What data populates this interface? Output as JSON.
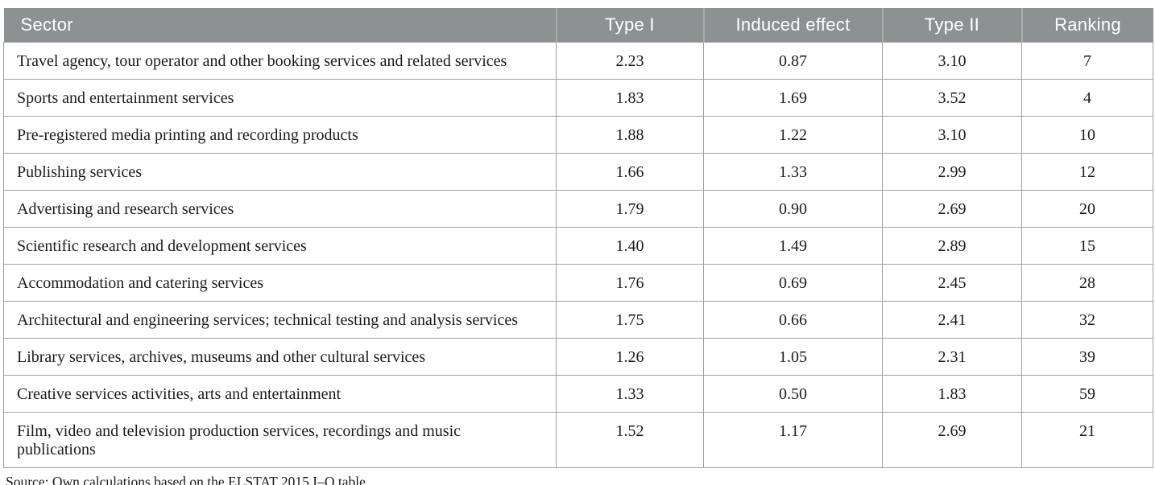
{
  "table": {
    "columns": [
      "Sector",
      "Type I",
      "Induced effect",
      "Type II",
      "Ranking"
    ],
    "rows": [
      {
        "sector": "Travel agency, tour operator and other booking services and related services",
        "type_i": "2.23",
        "induced_effect": "0.87",
        "type_ii": "3.10",
        "ranking": "7"
      },
      {
        "sector": "Sports and entertainment services",
        "type_i": "1.83",
        "induced_effect": "1.69",
        "type_ii": "3.52",
        "ranking": "4"
      },
      {
        "sector": "Pre-registered media printing and recording products",
        "type_i": "1.88",
        "induced_effect": "1.22",
        "type_ii": "3.10",
        "ranking": "10"
      },
      {
        "sector": "Publishing services",
        "type_i": "1.66",
        "induced_effect": "1.33",
        "type_ii": "2.99",
        "ranking": "12"
      },
      {
        "sector": "Advertising and research services",
        "type_i": "1.79",
        "induced_effect": "0.90",
        "type_ii": "2.69",
        "ranking": "20"
      },
      {
        "sector": "Scientific research and development services",
        "type_i": "1.40",
        "induced_effect": "1.49",
        "type_ii": "2.89",
        "ranking": "15"
      },
      {
        "sector": "Accommodation and catering services",
        "type_i": "1.76",
        "induced_effect": "0.69",
        "type_ii": "2.45",
        "ranking": "28"
      },
      {
        "sector": "Architectural and engineering services; technical testing and analysis services",
        "type_i": "1.75",
        "induced_effect": "0.66",
        "type_ii": "2.41",
        "ranking": "32"
      },
      {
        "sector": "Library services, archives, museums and other cultural services",
        "type_i": "1.26",
        "induced_effect": "1.05",
        "type_ii": "2.31",
        "ranking": "39"
      },
      {
        "sector": "Creative services activities, arts and entertainment",
        "type_i": "1.33",
        "induced_effect": "0.50",
        "type_ii": "1.83",
        "ranking": "59"
      },
      {
        "sector": "Film, video and television production services, recordings and music publications",
        "type_i": "1.52",
        "induced_effect": "1.17",
        "type_ii": "2.69",
        "ranking": "21"
      }
    ]
  },
  "source_note": "Source: Own calculations based on the ELSTAT 2015 I–O table.",
  "colors": {
    "header_bg": "#8d9192",
    "header_text": "#ffffff",
    "header_separator": "#aaadae",
    "body_border": "#9da0a1",
    "body_text": "#1b1b1b"
  }
}
